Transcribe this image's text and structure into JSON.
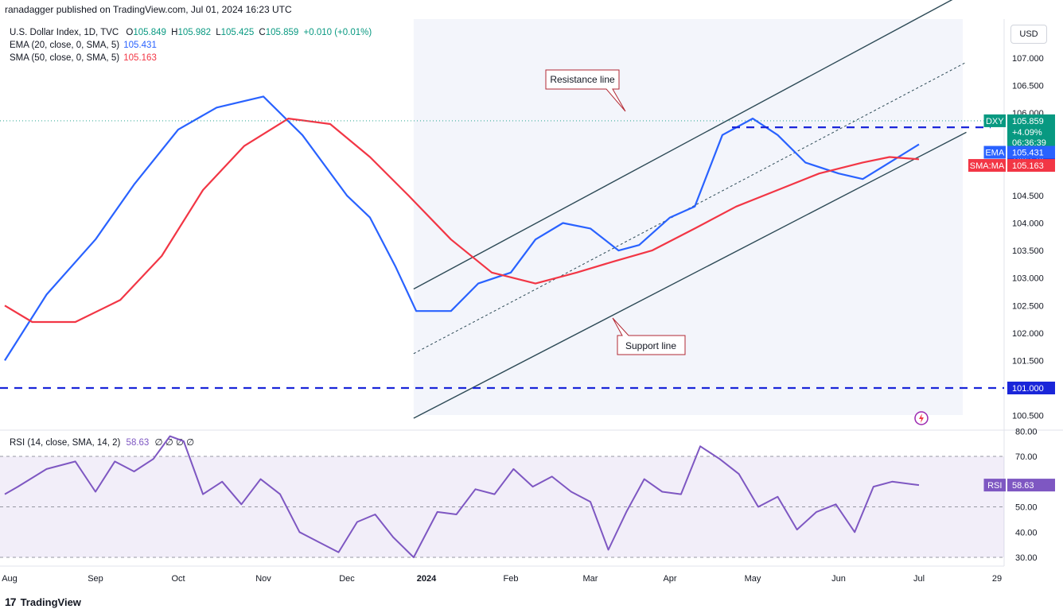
{
  "header": {
    "published": "ranadagger published on TradingView.com, Jul 01, 2024 16:23 UTC",
    "symbol": "U.S. Dollar Index, 1D, TVC",
    "ohlc": {
      "o_label": "O",
      "o": "105.849",
      "h_label": "H",
      "h": "105.982",
      "l_label": "L",
      "l": "105.425",
      "c_label": "C",
      "c": "105.859",
      "chg": "+0.010 (+0.01%)"
    },
    "ema_label": "EMA (20, close, 0, SMA, 5)",
    "ema_value": "105.431",
    "sma_label": "SMA (50, close, 0, SMA, 5)",
    "sma_value": "105.163",
    "currency": "USD"
  },
  "rsi_legend": {
    "label": "RSI (14, close, SMA, 14, 2)",
    "value": "58.63",
    "extra": "∅ ∅ ∅ ∅"
  },
  "footer": {
    "brand": "TradingView",
    "logo": "17"
  },
  "tags": {
    "dxy": {
      "name": "DXY",
      "price": "105.859",
      "change": "+4.09%",
      "countdown": "06:36:39",
      "color": "#089981"
    },
    "level1": {
      "price": "105.740"
    },
    "ema": {
      "name": "EMA",
      "price": "105.431",
      "color": "#2962ff"
    },
    "sma": {
      "name": "SMA:MA",
      "price": "105.163",
      "color": "#f23645"
    },
    "level2": {
      "price": "101.000"
    },
    "rsi": {
      "name": "RSI",
      "price": "58.63",
      "color": "#7e57c2"
    }
  },
  "annotations": {
    "resistance": "Resistance line",
    "support": "Support line"
  },
  "chart_data": {
    "type": "line",
    "title": "U.S. Dollar Index, 1D, TVC",
    "price_axis": {
      "ticks": [
        "107.000",
        "106.500",
        "106.000",
        "105.500",
        "105.000",
        "104.500",
        "104.000",
        "103.500",
        "103.000",
        "102.500",
        "102.000",
        "101.500",
        "101.000",
        "100.500"
      ],
      "range": [
        100.35,
        107.75
      ]
    },
    "rsi_axis": {
      "ticks": [
        "80.00",
        "70.00",
        "60.00",
        "50.00",
        "40.00",
        "30.00"
      ],
      "range": [
        28,
        80
      ],
      "bands": [
        30,
        50,
        70
      ]
    },
    "x_axis": {
      "ticks": [
        "Aug",
        "Sep",
        "Oct",
        "Nov",
        "Dec",
        "2024",
        "Feb",
        "Mar",
        "Apr",
        "May",
        "Jun",
        "Jul",
        "29"
      ]
    },
    "horizontal_levels": [
      105.74,
      101.0
    ],
    "channel": {
      "support": [
        [
          "2023-12-27",
          100.45
        ],
        [
          "2024-07-18",
          105.65
        ]
      ],
      "resistance": [
        [
          "2023-12-27",
          102.8
        ],
        [
          "2024-07-18",
          108.2
        ]
      ]
    },
    "series": [
      {
        "name": "EMA (20, close, 0, SMA, 5)",
        "color": "#2962ff",
        "values": [
          [
            "2023-07-28",
            101.5
          ],
          [
            "2023-08-15",
            102.7
          ],
          [
            "2023-09-01",
            103.7
          ],
          [
            "2023-09-15",
            104.7
          ],
          [
            "2023-10-01",
            105.7
          ],
          [
            "2023-10-15",
            106.1
          ],
          [
            "2023-11-01",
            106.3
          ],
          [
            "2023-11-15",
            105.6
          ],
          [
            "2023-12-01",
            104.5
          ],
          [
            "2023-12-10",
            104.1
          ],
          [
            "2023-12-20",
            103.2
          ],
          [
            "2023-12-28",
            102.4
          ],
          [
            "2024-01-10",
            102.4
          ],
          [
            "2024-01-20",
            102.9
          ],
          [
            "2024-02-01",
            103.1
          ],
          [
            "2024-02-10",
            103.7
          ],
          [
            "2024-02-20",
            104.0
          ],
          [
            "2024-03-01",
            103.9
          ],
          [
            "2024-03-12",
            103.5
          ],
          [
            "2024-03-20",
            103.6
          ],
          [
            "2024-04-01",
            104.1
          ],
          [
            "2024-04-10",
            104.3
          ],
          [
            "2024-04-20",
            105.6
          ],
          [
            "2024-05-01",
            105.9
          ],
          [
            "2024-05-10",
            105.6
          ],
          [
            "2024-05-20",
            105.1
          ],
          [
            "2024-06-01",
            104.9
          ],
          [
            "2024-06-10",
            104.8
          ],
          [
            "2024-06-20",
            105.1
          ],
          [
            "2024-07-01",
            105.43
          ]
        ]
      },
      {
        "name": "SMA (50, close, 0, SMA, 5)",
        "color": "#f23645",
        "values": [
          [
            "2023-07-28",
            102.5
          ],
          [
            "2023-08-10",
            102.2
          ],
          [
            "2023-08-25",
            102.2
          ],
          [
            "2023-09-10",
            102.6
          ],
          [
            "2023-09-25",
            103.4
          ],
          [
            "2023-10-10",
            104.6
          ],
          [
            "2023-10-25",
            105.4
          ],
          [
            "2023-11-10",
            105.9
          ],
          [
            "2023-11-25",
            105.8
          ],
          [
            "2023-12-10",
            105.2
          ],
          [
            "2023-12-25",
            104.5
          ],
          [
            "2024-01-10",
            103.7
          ],
          [
            "2024-01-25",
            103.1
          ],
          [
            "2024-02-10",
            102.9
          ],
          [
            "2024-02-25",
            103.1
          ],
          [
            "2024-03-10",
            103.3
          ],
          [
            "2024-03-25",
            103.5
          ],
          [
            "2024-04-10",
            103.9
          ],
          [
            "2024-04-25",
            104.3
          ],
          [
            "2024-05-10",
            104.6
          ],
          [
            "2024-05-25",
            104.9
          ],
          [
            "2024-06-10",
            105.1
          ],
          [
            "2024-06-20",
            105.2
          ],
          [
            "2024-07-01",
            105.16
          ]
        ]
      },
      {
        "name": "RSI (14, close, SMA, 14, 2)",
        "color": "#7e57c2",
        "values": [
          [
            "2023-07-28",
            55
          ],
          [
            "2023-08-05",
            58
          ],
          [
            "2023-08-15",
            65
          ],
          [
            "2023-08-25",
            68
          ],
          [
            "2023-09-01",
            56
          ],
          [
            "2023-09-08",
            68
          ],
          [
            "2023-09-15",
            64
          ],
          [
            "2023-09-22",
            69
          ],
          [
            "2023-09-28",
            78
          ],
          [
            "2023-10-03",
            76
          ],
          [
            "2023-10-10",
            55
          ],
          [
            "2023-10-17",
            60
          ],
          [
            "2023-10-24",
            51
          ],
          [
            "2023-10-31",
            61
          ],
          [
            "2023-11-07",
            55
          ],
          [
            "2023-11-14",
            40
          ],
          [
            "2023-11-21",
            36
          ],
          [
            "2023-11-28",
            32
          ],
          [
            "2023-12-05",
            44
          ],
          [
            "2023-12-12",
            47
          ],
          [
            "2023-12-19",
            38
          ],
          [
            "2023-12-27",
            30
          ],
          [
            "2024-01-05",
            48
          ],
          [
            "2024-01-12",
            47
          ],
          [
            "2024-01-19",
            57
          ],
          [
            "2024-01-26",
            55
          ],
          [
            "2024-02-02",
            65
          ],
          [
            "2024-02-09",
            58
          ],
          [
            "2024-02-16",
            62
          ],
          [
            "2024-02-23",
            56
          ],
          [
            "2024-03-01",
            52
          ],
          [
            "2024-03-08",
            33
          ],
          [
            "2024-03-15",
            48
          ],
          [
            "2024-03-22",
            61
          ],
          [
            "2024-03-29",
            56
          ],
          [
            "2024-04-05",
            55
          ],
          [
            "2024-04-12",
            74
          ],
          [
            "2024-04-19",
            69
          ],
          [
            "2024-04-26",
            63
          ],
          [
            "2024-05-03",
            50
          ],
          [
            "2024-05-10",
            54
          ],
          [
            "2024-05-17",
            41
          ],
          [
            "2024-05-24",
            48
          ],
          [
            "2024-05-31",
            51
          ],
          [
            "2024-06-07",
            40
          ],
          [
            "2024-06-14",
            58
          ],
          [
            "2024-06-21",
            60
          ],
          [
            "2024-06-28",
            59
          ],
          [
            "2024-07-01",
            58.63
          ]
        ]
      }
    ]
  }
}
